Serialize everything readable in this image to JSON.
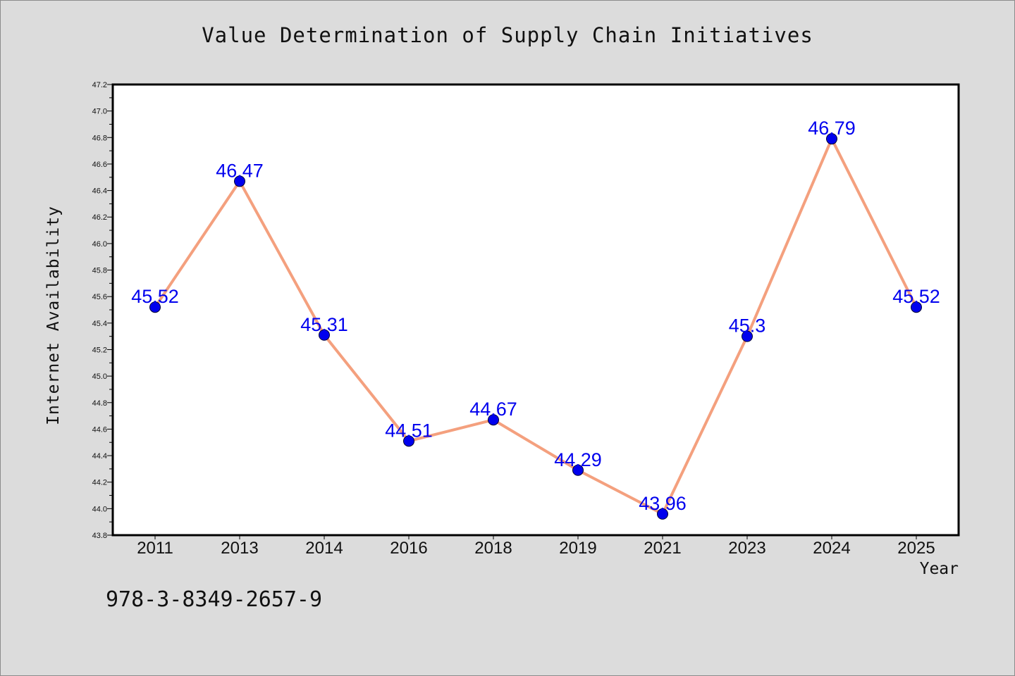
{
  "page": {
    "footer_code": "978-3-8349-2657-9"
  },
  "chart_data": {
    "type": "line",
    "title": "Value Determination of Supply Chain Initiatives",
    "xlabel": "Year",
    "ylabel": "Internet Availability",
    "categories": [
      "2011",
      "2013",
      "2014",
      "2016",
      "2018",
      "2019",
      "2021",
      "2023",
      "2024",
      "2025"
    ],
    "values": [
      45.52,
      46.47,
      45.31,
      44.51,
      44.67,
      44.29,
      43.96,
      45.3,
      46.79,
      45.52
    ],
    "data_labels": [
      "45.52",
      "46.47",
      "45.31",
      "44.51",
      "44.67",
      "44.29",
      "43.96",
      "45.3",
      "46.79",
      "45.52"
    ],
    "ylim": [
      43.8,
      47.2
    ],
    "y_ticks": [
      "43.8",
      "44.0",
      "44.2",
      "44.4",
      "44.6",
      "44.8",
      "45.0",
      "45.2",
      "45.4",
      "45.6",
      "45.8",
      "46.0",
      "46.2",
      "46.4",
      "46.6",
      "46.8",
      "47.0",
      "47.2"
    ],
    "grid": false,
    "legend": "none",
    "colors": {
      "line": "#f4a07e",
      "marker": "#0000ee",
      "label": "#0000ee",
      "plot_background": "#ffffff",
      "figure_background": "#dcdcdc"
    }
  }
}
